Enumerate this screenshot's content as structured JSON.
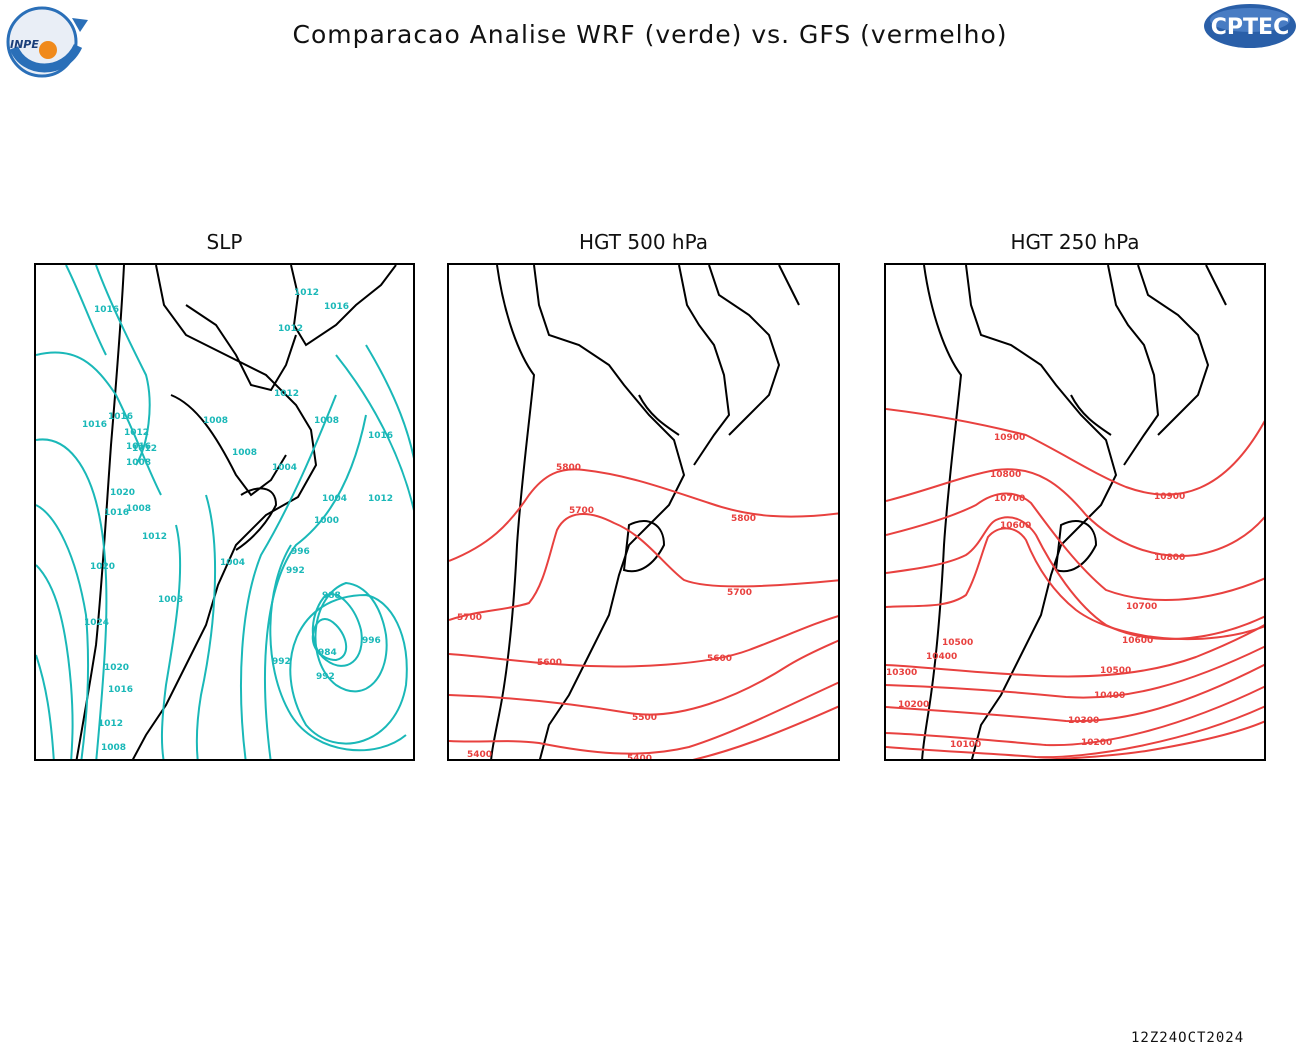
{
  "header": {
    "title": "Comparacao Analise WRF (verde) vs. GFS (vermelho)",
    "logo_left_text": "INPE",
    "logo_right_text": "CPTEC"
  },
  "colors": {
    "wrf": "#1ab8b8",
    "gfs": "#e8413f",
    "land": "#000000",
    "cptec_logo": "#2a5fa8"
  },
  "panels": [
    {
      "title": "SLP",
      "model": "WRF",
      "labels": [
        "1012",
        "1016",
        "1016",
        "1012",
        "1012",
        "1016",
        "1008",
        "1008",
        "1016",
        "1016",
        "1012",
        "1008",
        "1004",
        "1016",
        "1008",
        "1012",
        "1020",
        "1016",
        "1008",
        "1004",
        "1004",
        "1012",
        "1000",
        "1012",
        "1020",
        "1008",
        "996",
        "992",
        "988",
        "1024",
        "984",
        "992",
        "996",
        "1020",
        "992",
        "1016",
        "1012",
        "1008"
      ]
    },
    {
      "title": "HGT 500 hPa",
      "model": "GFS",
      "labels": [
        "5800",
        "5700",
        "5800",
        "5700",
        "5700",
        "5600",
        "5600",
        "5500",
        "5400",
        "5400"
      ]
    },
    {
      "title": "HGT 250 hPa",
      "model": "GFS",
      "labels": [
        "10900",
        "10800",
        "10900",
        "10700",
        "10600",
        "10800",
        "10700",
        "10600",
        "10500",
        "10400",
        "10500",
        "10300",
        "10400",
        "10200",
        "10300",
        "10200",
        "10100"
      ]
    }
  ],
  "footer": {
    "timestamp": "12Z24OCT2024"
  }
}
